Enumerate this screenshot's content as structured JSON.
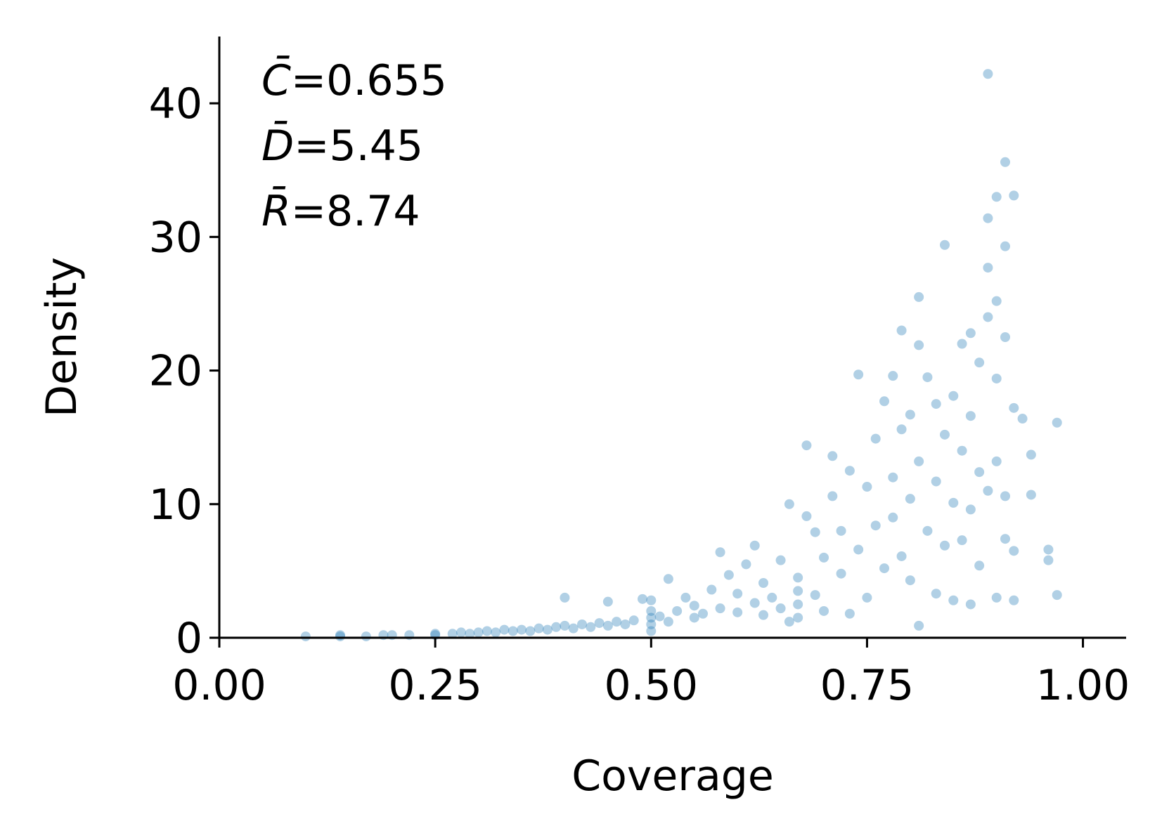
{
  "chart_data": {
    "type": "scatter",
    "title": "",
    "xlabel": "Coverage",
    "ylabel": "Density",
    "xlim": [
      0.0,
      1.05
    ],
    "ylim": [
      0,
      45
    ],
    "xticks": [
      {
        "value": 0.0,
        "label": "0.00"
      },
      {
        "value": 0.25,
        "label": "0.25"
      },
      {
        "value": 0.5,
        "label": "0.50"
      },
      {
        "value": 0.75,
        "label": "0.75"
      },
      {
        "value": 1.0,
        "label": "1.00"
      }
    ],
    "yticks": [
      {
        "value": 0,
        "label": "0"
      },
      {
        "value": 10,
        "label": "10"
      },
      {
        "value": 20,
        "label": "20"
      },
      {
        "value": 30,
        "label": "30"
      },
      {
        "value": 40,
        "label": "40"
      }
    ],
    "grid": false,
    "point_color": "#1f77b4",
    "point_opacity": 0.35,
    "annotations": [
      {
        "symbol": "C̄",
        "text": "=0.655"
      },
      {
        "symbol": "D̄",
        "text": "=5.45"
      },
      {
        "symbol": "R̄",
        "text": "=8.74"
      }
    ],
    "points": [
      [
        0.1,
        0.1
      ],
      [
        0.14,
        0.1
      ],
      [
        0.14,
        0.2
      ],
      [
        0.17,
        0.1
      ],
      [
        0.19,
        0.2
      ],
      [
        0.2,
        0.2
      ],
      [
        0.22,
        0.2
      ],
      [
        0.25,
        0.2
      ],
      [
        0.25,
        0.3
      ],
      [
        0.27,
        0.3
      ],
      [
        0.28,
        0.4
      ],
      [
        0.29,
        0.3
      ],
      [
        0.3,
        0.4
      ],
      [
        0.31,
        0.5
      ],
      [
        0.32,
        0.4
      ],
      [
        0.33,
        0.6
      ],
      [
        0.34,
        0.5
      ],
      [
        0.35,
        0.6
      ],
      [
        0.36,
        0.5
      ],
      [
        0.37,
        0.7
      ],
      [
        0.38,
        0.6
      ],
      [
        0.39,
        0.8
      ],
      [
        0.4,
        3.0
      ],
      [
        0.4,
        0.9
      ],
      [
        0.41,
        0.7
      ],
      [
        0.42,
        1.0
      ],
      [
        0.43,
        0.8
      ],
      [
        0.44,
        1.1
      ],
      [
        0.45,
        2.7
      ],
      [
        0.45,
        0.9
      ],
      [
        0.46,
        1.2
      ],
      [
        0.47,
        1.0
      ],
      [
        0.48,
        1.3
      ],
      [
        0.49,
        2.9
      ],
      [
        0.5,
        0.5
      ],
      [
        0.5,
        1.0
      ],
      [
        0.5,
        1.5
      ],
      [
        0.5,
        2.0
      ],
      [
        0.5,
        2.8
      ],
      [
        0.51,
        1.6
      ],
      [
        0.52,
        4.4
      ],
      [
        0.52,
        1.2
      ],
      [
        0.53,
        2.0
      ],
      [
        0.54,
        3.0
      ],
      [
        0.55,
        1.5
      ],
      [
        0.55,
        2.4
      ],
      [
        0.56,
        1.8
      ],
      [
        0.57,
        3.6
      ],
      [
        0.58,
        6.4
      ],
      [
        0.58,
        2.2
      ],
      [
        0.59,
        4.7
      ],
      [
        0.6,
        1.9
      ],
      [
        0.6,
        3.3
      ],
      [
        0.61,
        5.5
      ],
      [
        0.62,
        2.6
      ],
      [
        0.62,
        6.9
      ],
      [
        0.63,
        1.7
      ],
      [
        0.63,
        4.1
      ],
      [
        0.64,
        3.0
      ],
      [
        0.65,
        5.8
      ],
      [
        0.65,
        2.2
      ],
      [
        0.66,
        10.0
      ],
      [
        0.66,
        1.2
      ],
      [
        0.67,
        1.5
      ],
      [
        0.67,
        2.5
      ],
      [
        0.67,
        3.5
      ],
      [
        0.67,
        4.5
      ],
      [
        0.68,
        14.4
      ],
      [
        0.68,
        9.1
      ],
      [
        0.69,
        7.9
      ],
      [
        0.69,
        3.2
      ],
      [
        0.7,
        6.0
      ],
      [
        0.7,
        2.0
      ],
      [
        0.71,
        13.6
      ],
      [
        0.71,
        10.6
      ],
      [
        0.72,
        4.8
      ],
      [
        0.72,
        8.0
      ],
      [
        0.73,
        12.5
      ],
      [
        0.73,
        1.8
      ],
      [
        0.74,
        19.7
      ],
      [
        0.74,
        6.6
      ],
      [
        0.75,
        11.3
      ],
      [
        0.75,
        3.0
      ],
      [
        0.76,
        14.9
      ],
      [
        0.76,
        8.4
      ],
      [
        0.77,
        17.7
      ],
      [
        0.77,
        5.2
      ],
      [
        0.78,
        19.6
      ],
      [
        0.78,
        12.0
      ],
      [
        0.78,
        9.0
      ],
      [
        0.79,
        23.0
      ],
      [
        0.79,
        15.6
      ],
      [
        0.79,
        6.1
      ],
      [
        0.8,
        16.7
      ],
      [
        0.8,
        10.4
      ],
      [
        0.8,
        4.3
      ],
      [
        0.81,
        25.5
      ],
      [
        0.81,
        21.9
      ],
      [
        0.81,
        13.2
      ],
      [
        0.81,
        0.9
      ],
      [
        0.82,
        19.5
      ],
      [
        0.82,
        8.0
      ],
      [
        0.83,
        17.5
      ],
      [
        0.83,
        11.7
      ],
      [
        0.83,
        3.3
      ],
      [
        0.84,
        29.4
      ],
      [
        0.84,
        15.2
      ],
      [
        0.84,
        6.9
      ],
      [
        0.85,
        18.1
      ],
      [
        0.85,
        10.1
      ],
      [
        0.85,
        2.8
      ],
      [
        0.86,
        22.0
      ],
      [
        0.86,
        14.0
      ],
      [
        0.86,
        7.3
      ],
      [
        0.87,
        22.8
      ],
      [
        0.87,
        16.6
      ],
      [
        0.87,
        9.6
      ],
      [
        0.87,
        2.5
      ],
      [
        0.88,
        20.6
      ],
      [
        0.88,
        12.4
      ],
      [
        0.88,
        5.4
      ],
      [
        0.89,
        31.4
      ],
      [
        0.89,
        27.7
      ],
      [
        0.89,
        24.0
      ],
      [
        0.89,
        11.0
      ],
      [
        0.89,
        42.2
      ],
      [
        0.9,
        33.0
      ],
      [
        0.9,
        25.2
      ],
      [
        0.9,
        19.4
      ],
      [
        0.9,
        13.2
      ],
      [
        0.9,
        3.0
      ],
      [
        0.91,
        35.6
      ],
      [
        0.91,
        29.3
      ],
      [
        0.91,
        22.5
      ],
      [
        0.91,
        10.6
      ],
      [
        0.91,
        7.4
      ],
      [
        0.92,
        33.1
      ],
      [
        0.92,
        17.2
      ],
      [
        0.92,
        6.5
      ],
      [
        0.92,
        2.8
      ],
      [
        0.93,
        16.4
      ],
      [
        0.94,
        13.7
      ],
      [
        0.94,
        10.7
      ],
      [
        0.96,
        6.6
      ],
      [
        0.96,
        5.8
      ],
      [
        0.97,
        16.1
      ],
      [
        0.97,
        3.2
      ]
    ]
  }
}
